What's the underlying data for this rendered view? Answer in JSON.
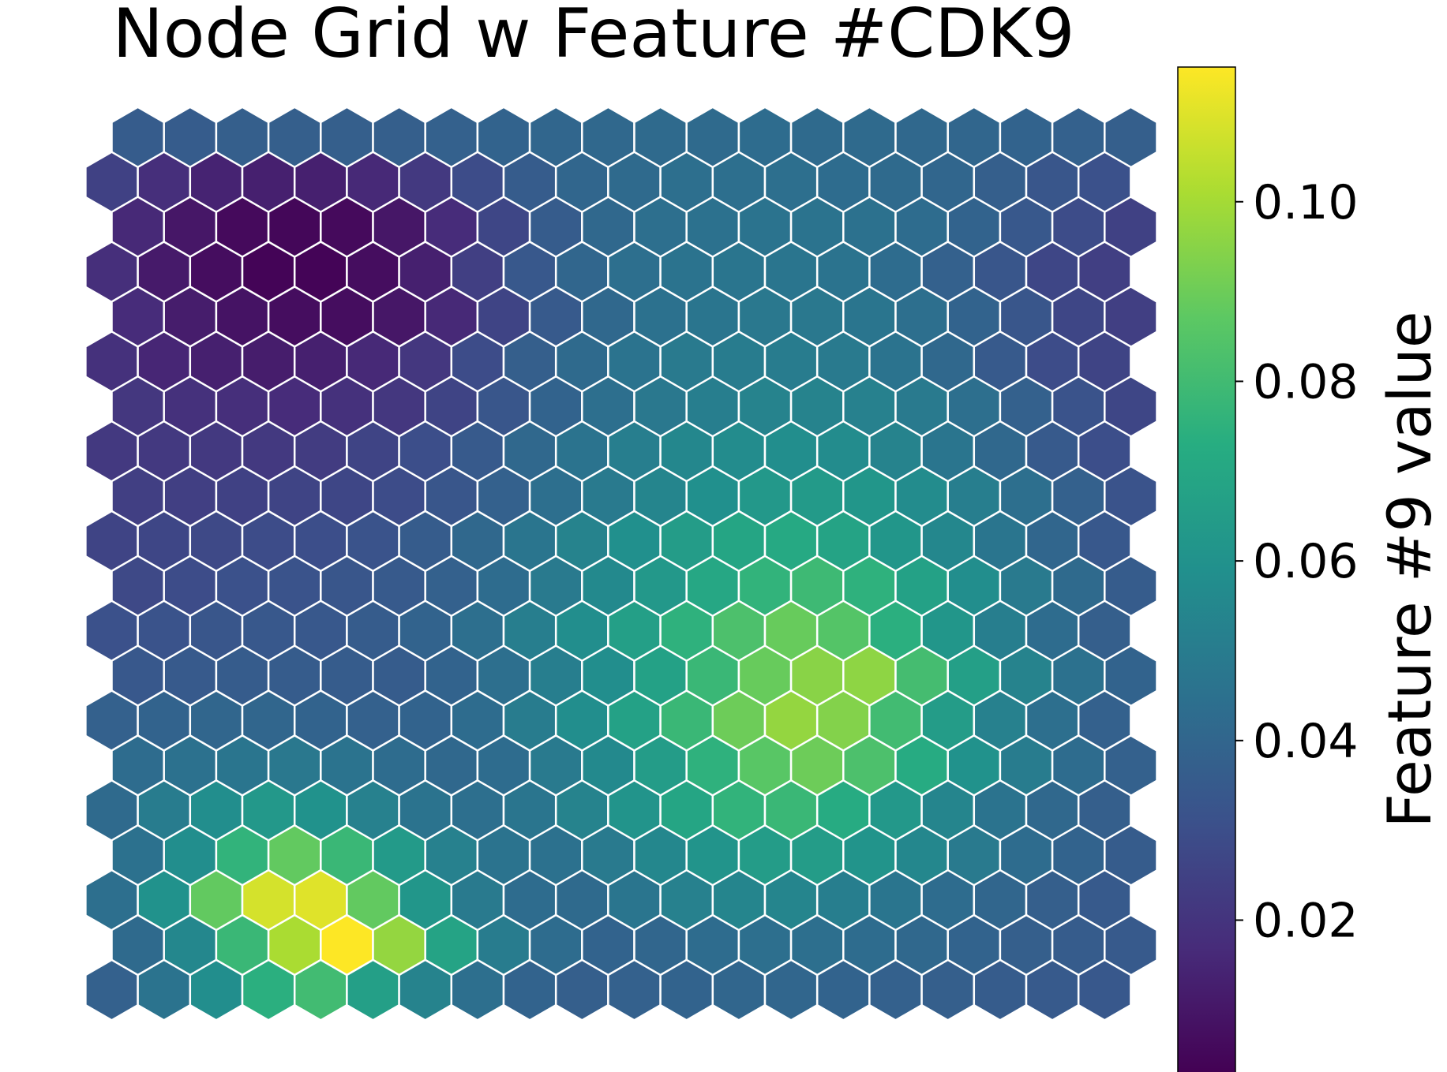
{
  "chart_data": {
    "type": "heatmap",
    "subtype": "hexagonal-grid",
    "title": "Node Grid w Feature #CDK9",
    "colorbar": {
      "label": "Feature #9 value",
      "range": [
        0.003,
        0.115
      ],
      "ticks": [
        0.02,
        0.04,
        0.06,
        0.08,
        0.1
      ],
      "tick_labels": [
        "0.02",
        "0.04",
        "0.06",
        "0.08",
        "0.10"
      ],
      "colormap": "viridis",
      "placement": "right"
    },
    "grid": {
      "rows": 20,
      "cols": 20,
      "row_order": "top-to-bottom",
      "values": [
        [
          0.036,
          0.036,
          0.037,
          0.037,
          0.037,
          0.037,
          0.038,
          0.039,
          0.04,
          0.041,
          0.042,
          0.042,
          0.043,
          0.042,
          0.042,
          0.041,
          0.04,
          0.039,
          0.038,
          0.037
        ],
        [
          0.025,
          0.018,
          0.014,
          0.013,
          0.013,
          0.016,
          0.022,
          0.029,
          0.036,
          0.04,
          0.042,
          0.044,
          0.044,
          0.044,
          0.043,
          0.042,
          0.04,
          0.037,
          0.033,
          0.031
        ],
        [
          0.016,
          0.01,
          0.006,
          0.005,
          0.006,
          0.01,
          0.017,
          0.027,
          0.036,
          0.041,
          0.044,
          0.045,
          0.046,
          0.046,
          0.045,
          0.043,
          0.039,
          0.034,
          0.029,
          0.025
        ],
        [
          0.018,
          0.011,
          0.007,
          0.004,
          0.004,
          0.007,
          0.013,
          0.024,
          0.034,
          0.04,
          0.044,
          0.046,
          0.047,
          0.047,
          0.046,
          0.043,
          0.038,
          0.033,
          0.027,
          0.024
        ],
        [
          0.017,
          0.012,
          0.009,
          0.007,
          0.007,
          0.01,
          0.016,
          0.026,
          0.035,
          0.041,
          0.045,
          0.047,
          0.048,
          0.048,
          0.047,
          0.044,
          0.039,
          0.033,
          0.027,
          0.024
        ],
        [
          0.019,
          0.015,
          0.013,
          0.012,
          0.013,
          0.016,
          0.021,
          0.029,
          0.037,
          0.042,
          0.046,
          0.049,
          0.05,
          0.05,
          0.049,
          0.046,
          0.041,
          0.035,
          0.029,
          0.026
        ],
        [
          0.021,
          0.019,
          0.018,
          0.017,
          0.019,
          0.021,
          0.026,
          0.033,
          0.039,
          0.044,
          0.048,
          0.051,
          0.053,
          0.053,
          0.052,
          0.049,
          0.044,
          0.038,
          0.032,
          0.027
        ],
        [
          0.022,
          0.022,
          0.022,
          0.022,
          0.023,
          0.026,
          0.03,
          0.035,
          0.041,
          0.046,
          0.051,
          0.055,
          0.057,
          0.058,
          0.057,
          0.053,
          0.047,
          0.041,
          0.035,
          0.03
        ],
        [
          0.024,
          0.024,
          0.025,
          0.026,
          0.027,
          0.029,
          0.033,
          0.038,
          0.044,
          0.049,
          0.054,
          0.059,
          0.063,
          0.064,
          0.062,
          0.057,
          0.051,
          0.044,
          0.038,
          0.032
        ],
        [
          0.026,
          0.027,
          0.028,
          0.029,
          0.03,
          0.032,
          0.036,
          0.041,
          0.047,
          0.053,
          0.059,
          0.065,
          0.069,
          0.071,
          0.068,
          0.062,
          0.055,
          0.047,
          0.04,
          0.034
        ],
        [
          0.028,
          0.029,
          0.031,
          0.032,
          0.033,
          0.035,
          0.038,
          0.043,
          0.049,
          0.056,
          0.063,
          0.07,
          0.076,
          0.079,
          0.075,
          0.067,
          0.058,
          0.049,
          0.042,
          0.036
        ],
        [
          0.031,
          0.032,
          0.033,
          0.034,
          0.034,
          0.036,
          0.039,
          0.044,
          0.051,
          0.058,
          0.066,
          0.075,
          0.083,
          0.089,
          0.085,
          0.074,
          0.062,
          0.051,
          0.043,
          0.037
        ],
        [
          0.034,
          0.035,
          0.036,
          0.036,
          0.036,
          0.036,
          0.039,
          0.044,
          0.051,
          0.058,
          0.067,
          0.078,
          0.089,
          0.095,
          0.096,
          0.081,
          0.066,
          0.053,
          0.045,
          0.039
        ],
        [
          0.038,
          0.039,
          0.04,
          0.04,
          0.039,
          0.038,
          0.039,
          0.043,
          0.05,
          0.058,
          0.067,
          0.078,
          0.09,
          0.097,
          0.094,
          0.08,
          0.065,
          0.052,
          0.044,
          0.038
        ],
        [
          0.043,
          0.045,
          0.047,
          0.048,
          0.046,
          0.043,
          0.041,
          0.043,
          0.049,
          0.056,
          0.065,
          0.075,
          0.086,
          0.09,
          0.083,
          0.072,
          0.06,
          0.05,
          0.043,
          0.038
        ],
        [
          0.042,
          0.05,
          0.058,
          0.063,
          0.06,
          0.052,
          0.046,
          0.044,
          0.047,
          0.053,
          0.061,
          0.069,
          0.076,
          0.078,
          0.072,
          0.063,
          0.054,
          0.046,
          0.041,
          0.037
        ],
        [
          0.045,
          0.058,
          0.076,
          0.088,
          0.078,
          0.064,
          0.052,
          0.046,
          0.045,
          0.049,
          0.055,
          0.061,
          0.065,
          0.065,
          0.061,
          0.055,
          0.049,
          0.043,
          0.039,
          0.036
        ],
        [
          0.044,
          0.06,
          0.088,
          0.108,
          0.11,
          0.088,
          0.062,
          0.049,
          0.043,
          0.042,
          0.047,
          0.052,
          0.054,
          0.054,
          0.051,
          0.047,
          0.043,
          0.04,
          0.037,
          0.035
        ],
        [
          0.042,
          0.055,
          0.078,
          0.101,
          0.115,
          0.097,
          0.068,
          0.05,
          0.043,
          0.039,
          0.04,
          0.043,
          0.044,
          0.044,
          0.043,
          0.041,
          0.039,
          0.037,
          0.036,
          0.035
        ],
        [
          0.038,
          0.046,
          0.058,
          0.074,
          0.08,
          0.066,
          0.053,
          0.044,
          0.039,
          0.037,
          0.038,
          0.039,
          0.04,
          0.04,
          0.039,
          0.038,
          0.037,
          0.036,
          0.035,
          0.034
        ]
      ]
    }
  }
}
